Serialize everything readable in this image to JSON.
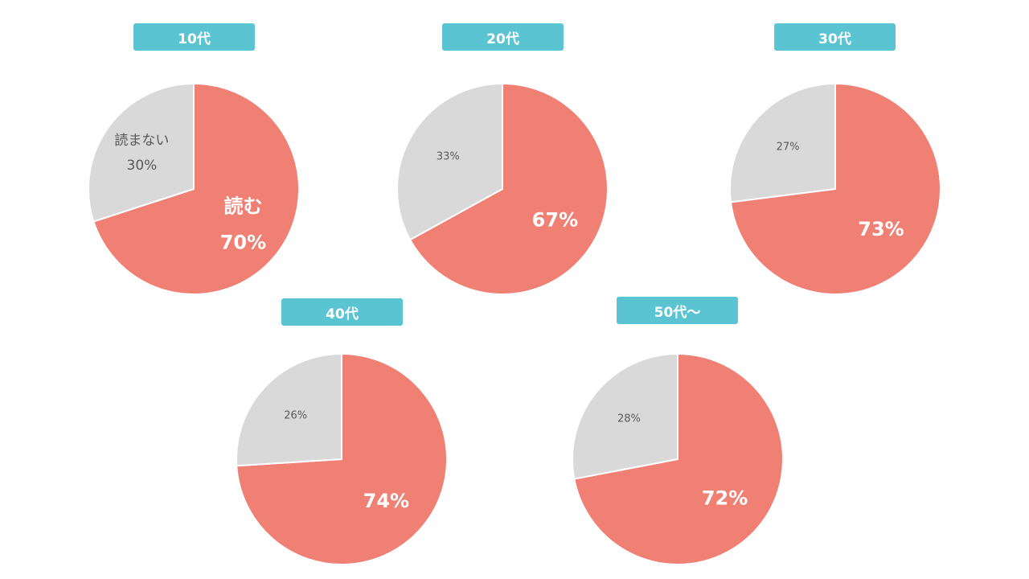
{
  "colors": {
    "read": "#f07f74",
    "not_read": "#d9d9d9",
    "label_bg": "#5bc4d3",
    "label_text": "#ffffff",
    "outline": "#ffffff"
  },
  "chart_data": [
    {
      "type": "pie",
      "title": "10代",
      "slices": [
        {
          "category": "読む",
          "value": 70,
          "label": "70%"
        },
        {
          "category": "読まない",
          "value": 30,
          "label": "30%"
        }
      ]
    },
    {
      "type": "pie",
      "title": "20代",
      "slices": [
        {
          "category": "",
          "value": 67,
          "label": "67%"
        },
        {
          "category": "",
          "value": 33,
          "label": "33%"
        }
      ]
    },
    {
      "type": "pie",
      "title": "30代",
      "slices": [
        {
          "category": "",
          "value": 73,
          "label": "73%"
        },
        {
          "category": "",
          "value": 27,
          "label": "27%"
        }
      ]
    },
    {
      "type": "pie",
      "title": "40代",
      "slices": [
        {
          "category": "",
          "value": 74,
          "label": "74%"
        },
        {
          "category": "",
          "value": 26,
          "label": "26%"
        }
      ]
    },
    {
      "type": "pie",
      "title": "50代～",
      "slices": [
        {
          "category": "",
          "value": 72,
          "label": "72%"
        },
        {
          "category": "",
          "value": 28,
          "label": "28%"
        }
      ]
    }
  ]
}
